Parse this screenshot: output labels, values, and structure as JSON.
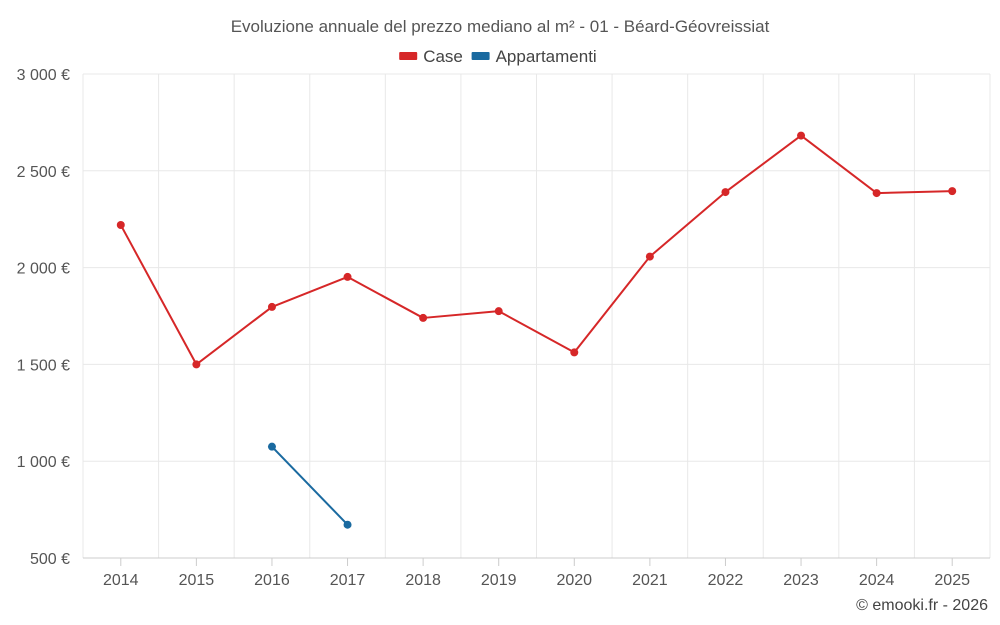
{
  "chart_data": {
    "type": "line",
    "title": "Evoluzione annuale del prezzo mediano al m² - 01 - Béard-Géovreissiat",
    "categories": [
      "2014",
      "2015",
      "2016",
      "2017",
      "2018",
      "2019",
      "2020",
      "2021",
      "2022",
      "2023",
      "2024",
      "2025"
    ],
    "ylim": [
      500,
      3000
    ],
    "yticks": [
      500,
      1000,
      1500,
      2000,
      2500,
      3000
    ],
    "ytick_labels": [
      "500 €",
      "1 000 €",
      "1 500 €",
      "2 000 €",
      "2 500 €",
      "3 000 €"
    ],
    "grid": true,
    "legend_position": "top-center",
    "series": [
      {
        "name": "Case",
        "color": "#d62728",
        "values": [
          2220,
          1500,
          1797,
          1952,
          1740,
          1775,
          1562,
          2057,
          2390,
          2682,
          2385,
          2395
        ]
      },
      {
        "name": "Appartamenti",
        "color": "#1a6aa0",
        "values": [
          null,
          null,
          1075,
          672,
          null,
          null,
          null,
          null,
          null,
          null,
          null,
          null
        ]
      }
    ]
  },
  "credit": "© emooki.fr - 2026"
}
